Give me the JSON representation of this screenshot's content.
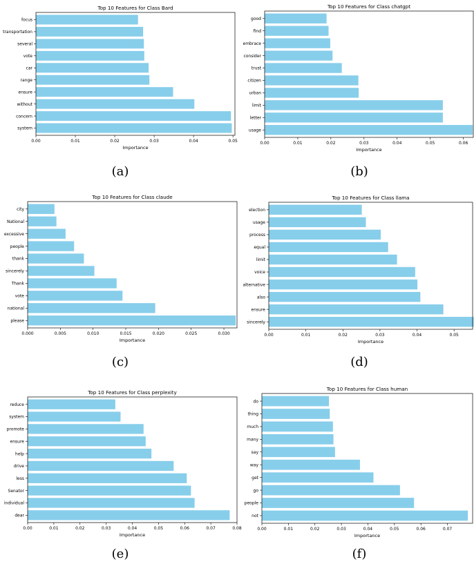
{
  "bar_color": "#87ceeb",
  "chart_data": [
    {
      "type": "bar",
      "orientation": "horizontal",
      "title": "Top 10 Features for Class Bard",
      "xlabel": "Importance",
      "ylabel": "",
      "caption": "(a)",
      "xlim": [
        0,
        0.0505
      ],
      "xticks": [
        0,
        0.01,
        0.02,
        0.03,
        0.04,
        0.05
      ],
      "xtick_labels": [
        "0.00",
        "0.01",
        "0.02",
        "0.03",
        "0.04",
        "0.05"
      ],
      "categories": [
        "system",
        "concern",
        "without",
        "ensure",
        "range",
        "car",
        "vote",
        "several",
        "transportation",
        "focus"
      ],
      "values": [
        0.0497,
        0.0495,
        0.0402,
        0.0348,
        0.0288,
        0.0286,
        0.0275,
        0.0274,
        0.0272,
        0.0259
      ]
    },
    {
      "type": "bar",
      "orientation": "horizontal",
      "title": "Top 10 Features for Class chatgpt",
      "xlabel": "Importance",
      "ylabel": "",
      "caption": "(b)",
      "xlim": [
        0,
        0.063
      ],
      "xticks": [
        0,
        0.01,
        0.02,
        0.03,
        0.04,
        0.05,
        0.06
      ],
      "xtick_labels": [
        "0.00",
        "0.01",
        "0.02",
        "0.03",
        "0.04",
        "0.05",
        "0.06"
      ],
      "categories": [
        "usage",
        "letter",
        "limit",
        "urban",
        "citizen",
        "trust",
        "consider",
        "embrace",
        "find",
        "good"
      ],
      "values": [
        0.0628,
        0.0538,
        0.0538,
        0.0284,
        0.0283,
        0.0233,
        0.0205,
        0.0198,
        0.0193,
        0.0187
      ]
    },
    {
      "type": "bar",
      "orientation": "horizontal",
      "title": "Top 10 Features for Class claude",
      "xlabel": "Importance",
      "ylabel": "",
      "caption": "(c)",
      "xlim": [
        0,
        0.032
      ],
      "xticks": [
        0,
        0.005,
        0.01,
        0.015,
        0.02,
        0.025,
        0.03
      ],
      "xtick_labels": [
        "0.000",
        "0.005",
        "0.010",
        "0.015",
        "0.020",
        "0.025",
        "0.030"
      ],
      "categories": [
        "please",
        "national",
        "vote",
        "Thank",
        "sincerely",
        "thank",
        "people",
        "excessive",
        "National",
        "city"
      ],
      "values": [
        0.0318,
        0.0195,
        0.0145,
        0.0136,
        0.0102,
        0.0086,
        0.0071,
        0.0058,
        0.0044,
        0.0041
      ]
    },
    {
      "type": "bar",
      "orientation": "horizontal",
      "title": "Top 10 Features for Class llama",
      "xlabel": "Importance",
      "ylabel": "",
      "caption": "(d)",
      "xlim": [
        0,
        0.055
      ],
      "xticks": [
        0,
        0.01,
        0.02,
        0.03,
        0.04,
        0.05
      ],
      "xtick_labels": [
        "0.00",
        "0.01",
        "0.02",
        "0.03",
        "0.04",
        "0.05"
      ],
      "categories": [
        "sincerely",
        "ensure",
        "also",
        "alternative",
        "voice",
        "limit",
        "equal",
        "process",
        "usage",
        "election"
      ],
      "values": [
        0.0553,
        0.0471,
        0.0409,
        0.0401,
        0.0395,
        0.0346,
        0.0322,
        0.0302,
        0.0262,
        0.0251
      ]
    },
    {
      "type": "bar",
      "orientation": "horizontal",
      "title": "Top 10 Features for Class perplexity",
      "xlabel": "Importance",
      "ylabel": "",
      "caption": "(e)",
      "xlim": [
        0,
        0.08
      ],
      "xticks": [
        0,
        0.01,
        0.02,
        0.03,
        0.04,
        0.05,
        0.06,
        0.07,
        0.08
      ],
      "xtick_labels": [
        "0.00",
        "0.01",
        "0.02",
        "0.03",
        "0.04",
        "0.05",
        "0.06",
        "0.07",
        "0.08"
      ],
      "categories": [
        "dear",
        "individual",
        "Senator",
        "less",
        "drive",
        "help",
        "ensure",
        "promote",
        "system",
        "reduce"
      ],
      "values": [
        0.0772,
        0.0638,
        0.0624,
        0.0608,
        0.0558,
        0.0473,
        0.0451,
        0.0443,
        0.0355,
        0.0335
      ]
    },
    {
      "type": "bar",
      "orientation": "horizontal",
      "title": "Top 10 Features for Class human",
      "xlabel": "Importance",
      "ylabel": "",
      "caption": "(f)",
      "xlim": [
        0,
        0.0795
      ],
      "xticks": [
        0,
        0.01,
        0.02,
        0.03,
        0.04,
        0.05,
        0.06,
        0.07
      ],
      "xtick_labels": [
        "0.00",
        "0.01",
        "0.02",
        "0.03",
        "0.04",
        "0.05",
        "0.06",
        "0.07"
      ],
      "categories": [
        "not",
        "people",
        "go",
        "get",
        "way",
        "say",
        "many",
        "much",
        "thing",
        "do"
      ],
      "values": [
        0.0777,
        0.0574,
        0.0521,
        0.0421,
        0.037,
        0.0276,
        0.027,
        0.0268,
        0.0256,
        0.0253
      ]
    }
  ]
}
